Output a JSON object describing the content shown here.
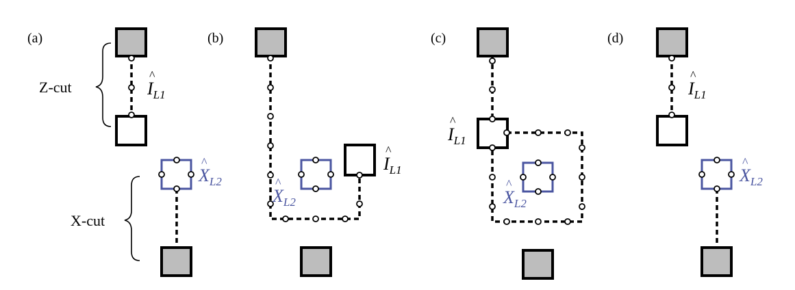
{
  "panels": {
    "a": {
      "label": "(a)",
      "z_cut": "Z-cut",
      "x_cut": "X-cut",
      "op1": {
        "main": "I",
        "sub": "L1"
      },
      "op2": {
        "main": "X",
        "sub": "L2"
      }
    },
    "b": {
      "label": "(b)",
      "op1": {
        "main": "I",
        "sub": "L1"
      },
      "op2": {
        "main": "X",
        "sub": "L2"
      }
    },
    "c": {
      "label": "(c)",
      "op1": {
        "main": "I",
        "sub": "L1"
      },
      "op2": {
        "main": "X",
        "sub": "L2"
      }
    },
    "d": {
      "label": "(d)",
      "op1": {
        "main": "I",
        "sub": "L1"
      },
      "op2": {
        "main": "X",
        "sub": "L2"
      }
    }
  },
  "colors": {
    "gray_fill": "#bdbdbd",
    "blue": "#4a55a0",
    "black": "#000000"
  }
}
